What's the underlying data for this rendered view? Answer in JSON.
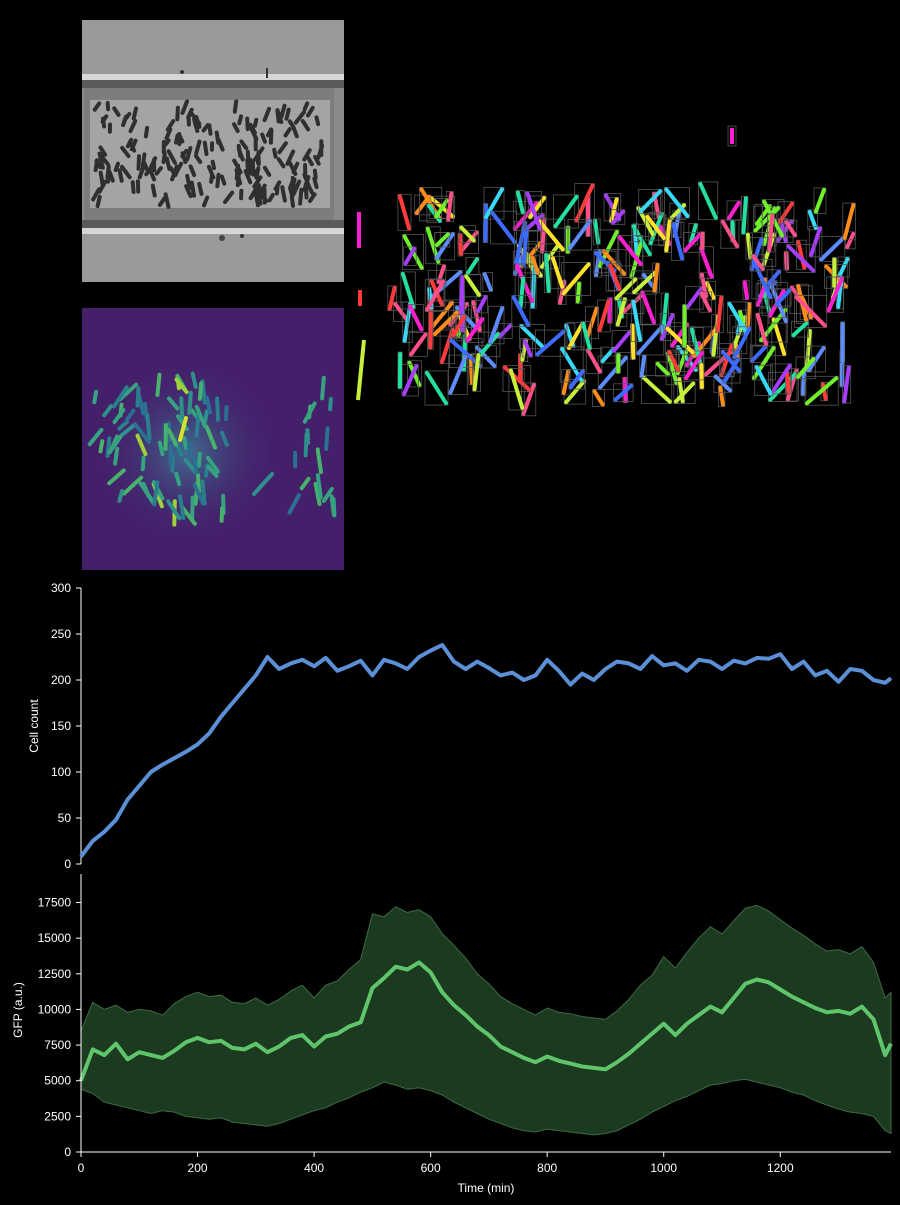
{
  "images": {
    "phase_contrast": {
      "icon": "phase-contrast-micrograph"
    },
    "fluorescence": {
      "icon": "gfp-fluorescence-micrograph"
    },
    "segmentation": {
      "icon": "cell-segmentation-overlay"
    }
  },
  "colors": {
    "background": "#000000",
    "cell_count_line": "#5b8fd6",
    "gfp_line": "#5fc56b",
    "gfp_band": "#1b3a1f",
    "gfp_band_edge": "#3d6b41",
    "axis": "#ffffff"
  },
  "chart_data": [
    {
      "type": "line",
      "xlabel": "",
      "ylabel": "Cell count",
      "xlim": [
        0,
        1390
      ],
      "ylim": [
        0,
        300
      ],
      "yticks": [
        0,
        50,
        100,
        150,
        200,
        250,
        300
      ],
      "grid": false,
      "series": [
        {
          "x": [
            0,
            20,
            40,
            60,
            80,
            100,
            120,
            140,
            160,
            180,
            200,
            220,
            240,
            260,
            280,
            300,
            320,
            340,
            360,
            380,
            400,
            420,
            440,
            460,
            480,
            500,
            520,
            540,
            560,
            580,
            600,
            620,
            640,
            660,
            680,
            700,
            720,
            740,
            760,
            780,
            800,
            820,
            840,
            860,
            880,
            900,
            920,
            940,
            960,
            980,
            1000,
            1020,
            1040,
            1060,
            1080,
            1100,
            1120,
            1140,
            1160,
            1180,
            1200,
            1220,
            1240,
            1260,
            1280,
            1300,
            1320,
            1340,
            1360,
            1380,
            1390
          ],
          "y": [
            8,
            25,
            35,
            48,
            70,
            85,
            100,
            108,
            115,
            122,
            130,
            142,
            160,
            175,
            190,
            205,
            225,
            212,
            218,
            222,
            215,
            224,
            210,
            215,
            221,
            205,
            222,
            218,
            212,
            225,
            232,
            238,
            220,
            212,
            220,
            213,
            205,
            208,
            200,
            205,
            222,
            210,
            195,
            207,
            200,
            212,
            220,
            218,
            212,
            226,
            216,
            218,
            210,
            222,
            220,
            212,
            221,
            218,
            224,
            223,
            228,
            212,
            220,
            205,
            210,
            198,
            212,
            210,
            200,
            197,
            202
          ]
        }
      ]
    },
    {
      "type": "line",
      "xlabel": "Time (min)",
      "ylabel": "GFP (a.u.)",
      "xlim": [
        0,
        1390
      ],
      "ylim": [
        0,
        19500
      ],
      "xticks": [
        0,
        200,
        400,
        600,
        800,
        1000,
        1200
      ],
      "yticks": [
        0,
        2500,
        5000,
        7500,
        10000,
        12500,
        15000,
        17500
      ],
      "grid": false,
      "series": [
        {
          "band": "range",
          "x": [
            0,
            20,
            40,
            60,
            80,
            100,
            120,
            140,
            160,
            180,
            200,
            220,
            240,
            260,
            280,
            300,
            320,
            340,
            360,
            380,
            400,
            420,
            440,
            460,
            480,
            500,
            520,
            540,
            560,
            580,
            600,
            620,
            640,
            660,
            680,
            700,
            720,
            740,
            760,
            780,
            800,
            820,
            840,
            860,
            880,
            900,
            920,
            940,
            960,
            980,
            1000,
            1020,
            1040,
            1060,
            1080,
            1100,
            1120,
            1140,
            1160,
            1180,
            1200,
            1220,
            1240,
            1260,
            1280,
            1300,
            1320,
            1340,
            1360,
            1380,
            1390
          ],
          "mean": [
            5000,
            7200,
            6800,
            7600,
            6500,
            7000,
            6800,
            6600,
            7100,
            7700,
            8000,
            7700,
            7800,
            7300,
            7200,
            7600,
            7000,
            7400,
            8000,
            8200,
            7400,
            8100,
            8300,
            8800,
            9100,
            11500,
            12200,
            13000,
            12800,
            13300,
            12600,
            11200,
            10300,
            9600,
            8800,
            8200,
            7400,
            7000,
            6600,
            6300,
            6700,
            6400,
            6200,
            6000,
            5900,
            5800,
            6300,
            6900,
            7600,
            8300,
            9000,
            8200,
            9000,
            9600,
            10200,
            9800,
            10800,
            11800,
            12100,
            11900,
            11400,
            10900,
            10500,
            10100,
            9800,
            9900,
            9700,
            10200,
            9300,
            6800,
            7600
          ],
          "upper": [
            8500,
            10500,
            10000,
            10300,
            9800,
            10000,
            9900,
            9600,
            10400,
            10900,
            11200,
            10900,
            11000,
            10500,
            10400,
            10800,
            10300,
            10700,
            11300,
            11700,
            10800,
            11700,
            12000,
            12800,
            13500,
            16700,
            16500,
            17200,
            16800,
            17000,
            16500,
            15300,
            14500,
            13600,
            12500,
            11800,
            10900,
            10400,
            10000,
            9600,
            10100,
            9800,
            9700,
            9500,
            9400,
            9300,
            9900,
            10700,
            11700,
            12400,
            13700,
            12900,
            14000,
            15000,
            15800,
            15300,
            16200,
            17100,
            17300,
            16900,
            16300,
            15700,
            15200,
            14600,
            14100,
            14200,
            13900,
            14400,
            13300,
            10800,
            11200
          ],
          "lower": [
            4400,
            4100,
            3500,
            3300,
            3100,
            2900,
            2700,
            2900,
            2800,
            2500,
            2400,
            2300,
            2400,
            2100,
            2000,
            1900,
            1800,
            2000,
            2300,
            2600,
            2900,
            3100,
            3500,
            3800,
            4200,
            4500,
            4900,
            4700,
            4400,
            4500,
            4300,
            4000,
            3500,
            3100,
            2700,
            2300,
            2000,
            1700,
            1500,
            1400,
            1600,
            1500,
            1400,
            1300,
            1200,
            1300,
            1500,
            1900,
            2300,
            2800,
            3200,
            3600,
            3900,
            4300,
            4700,
            4800,
            5000,
            5100,
            4900,
            4700,
            4500,
            4200,
            4000,
            3600,
            3300,
            3000,
            2800,
            2700,
            2500,
            1500,
            1300
          ]
        }
      ]
    }
  ]
}
